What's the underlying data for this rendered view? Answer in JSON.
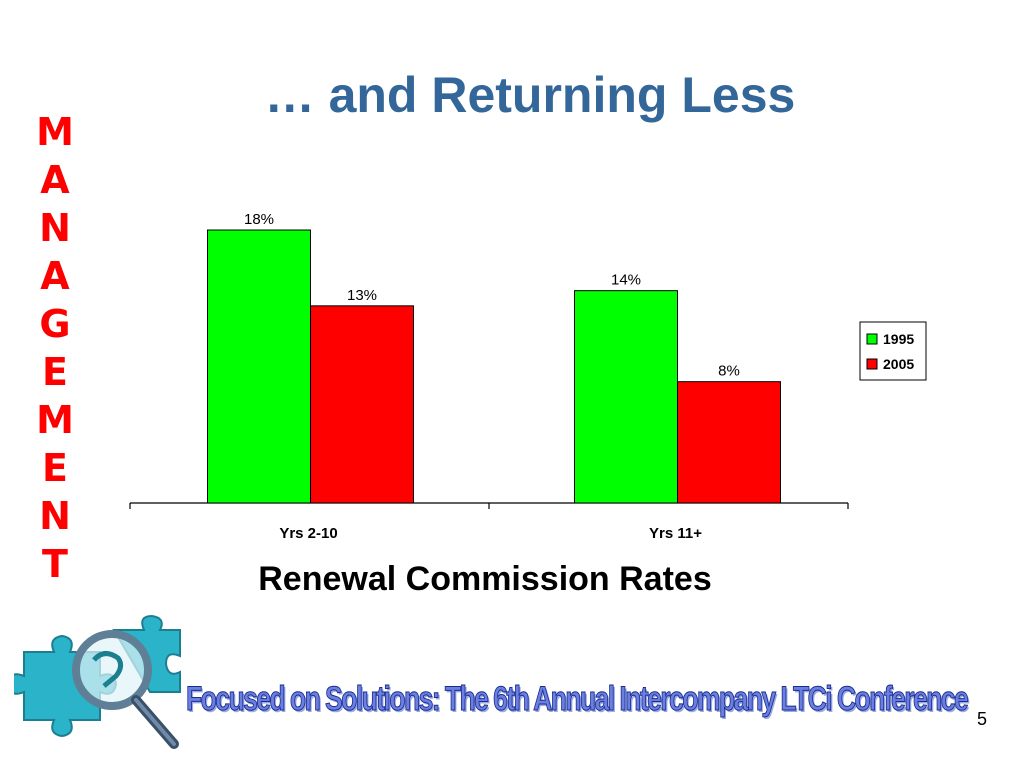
{
  "slide": {
    "title": "… and Returning Less",
    "side_label": [
      "M",
      "A",
      "N",
      "A",
      "G",
      "E",
      "M",
      "E",
      "N",
      "T"
    ],
    "footer": "Focused on Solutions:  The 6th Annual Intercompany LTCi Conference",
    "page_number": "5"
  },
  "colors": {
    "title": "#336699",
    "side_label": "#ff0000",
    "series_1995": "#00ff00",
    "series_2005": "#ff0000",
    "footer_text": "#6a7fe0",
    "logo_puzzle": "#2ab3c9"
  },
  "icons": [
    "puzzle-magnifier-logo-icon"
  ],
  "chart_data": {
    "type": "bar",
    "title": "Renewal Commission Rates",
    "categories": [
      "Yrs 2-10",
      "Yrs 11+"
    ],
    "series": [
      {
        "name": "1995",
        "values": [
          18,
          14
        ],
        "labels": [
          "18%",
          "14%"
        ],
        "color": "#00ff00"
      },
      {
        "name": "2005",
        "values": [
          13,
          8
        ],
        "labels": [
          "13%",
          "8%"
        ],
        "color": "#ff0000"
      }
    ],
    "ylim": [
      0,
      18
    ],
    "grid": false,
    "legend": "right"
  }
}
